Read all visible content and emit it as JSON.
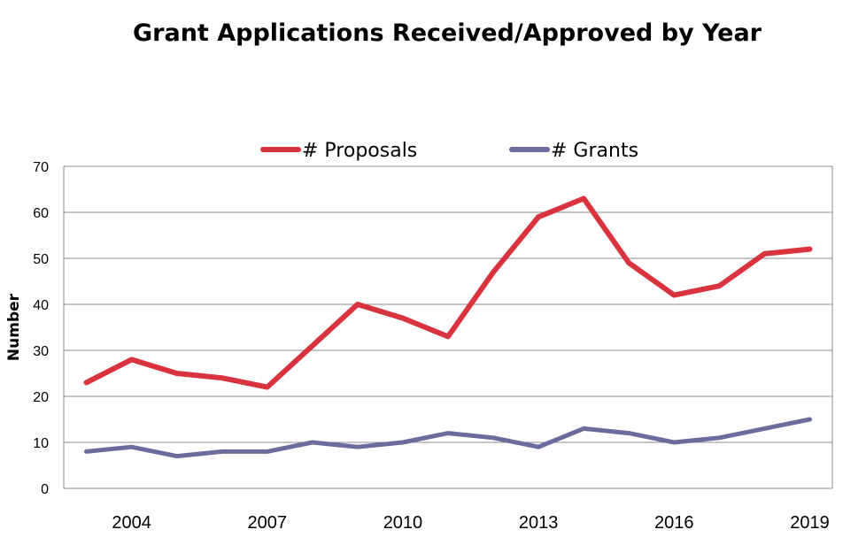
{
  "chart_data": {
    "type": "line",
    "title": "Grant Applications Received/Approved by Year",
    "xlabel": "",
    "ylabel": "Number",
    "x": [
      2003,
      2004,
      2005,
      2006,
      2007,
      2008,
      2009,
      2010,
      2011,
      2012,
      2013,
      2014,
      2015,
      2016,
      2017,
      2018,
      2019
    ],
    "x_tick_labels": [
      "2004",
      "2007",
      "2010",
      "2013",
      "2016",
      "2019"
    ],
    "x_tick_values": [
      2004,
      2007,
      2010,
      2013,
      2016,
      2019
    ],
    "ylim": [
      0,
      70
    ],
    "y_ticks": [
      0,
      10,
      20,
      30,
      40,
      50,
      60,
      70
    ],
    "grid": true,
    "legend_position": "top",
    "series": [
      {
        "name": "# Proposals",
        "color": "#d9333f",
        "values": [
          23,
          28,
          25,
          24,
          22,
          31,
          40,
          37,
          33,
          47,
          59,
          63,
          49,
          42,
          44,
          51,
          52
        ]
      },
      {
        "name": "# Grants",
        "color": "#6b6b9e",
        "values": [
          8,
          9,
          7,
          8,
          8,
          10,
          9,
          10,
          12,
          11,
          9,
          13,
          12,
          10,
          11,
          13,
          15
        ]
      }
    ]
  }
}
